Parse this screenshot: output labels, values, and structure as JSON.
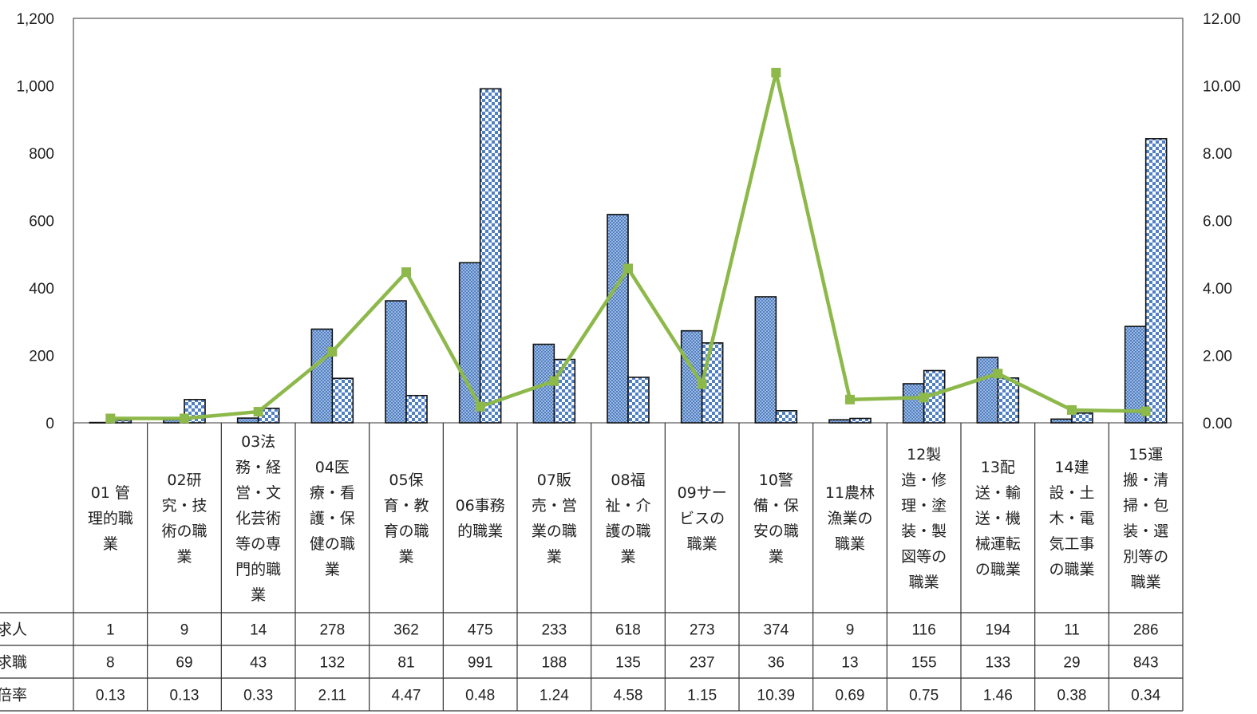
{
  "chart_data": {
    "type": "bar",
    "categories": [
      "01 管理的職業",
      "02研究・技術の職業",
      "03法務・経営・文化芸術等の専門的職業",
      "04医療・看護・保健の職業",
      "05保育・教育の職業",
      "06事務的職業",
      "07販売・営業の職業",
      "08福祉・介護の職業",
      "09サービスの職業",
      "10警備・保安の職業",
      "11農林漁業の職業",
      "12製造・修理・塗装・製図等の職業",
      "13配送・輸送・機械運転の職業",
      "14建設・土木・電気工事の職業",
      "15運搬・清掃・包装・選別等の職業"
    ],
    "category_lines": [
      [
        "01 管",
        "理的職",
        "業"
      ],
      [
        "02研",
        "究・技",
        "術の職",
        "業"
      ],
      [
        "03法",
        "務・経",
        "営・文",
        "化芸術",
        "等の専",
        "門的職",
        "業"
      ],
      [
        "04医",
        "療・看",
        "護・保",
        "健の職",
        "業"
      ],
      [
        "05保",
        "育・教",
        "育の職",
        "業"
      ],
      [
        "06事務",
        "的職業"
      ],
      [
        "07販",
        "売・営",
        "業の職",
        "業"
      ],
      [
        "08福",
        "祉・介",
        "護の職",
        "業"
      ],
      [
        "09サー",
        "ビスの",
        "職業"
      ],
      [
        "10警",
        "備・保",
        "安の職",
        "業"
      ],
      [
        "11農林",
        "漁業の",
        "職業"
      ],
      [
        "12製",
        "造・修",
        "理・塗",
        "装・製",
        "図等の",
        "職業"
      ],
      [
        "13配",
        "送・輸",
        "送・機",
        "械運転",
        "の職業"
      ],
      [
        "14建",
        "設・土",
        "木・電",
        "気工事",
        "の職業"
      ],
      [
        "15運",
        "搬・清",
        "掃・包",
        "装・選",
        "別等の",
        "職業"
      ]
    ],
    "series": [
      {
        "name": "求人",
        "kind": "bar",
        "pattern": "dots",
        "values": [
          1,
          9,
          14,
          278,
          362,
          475,
          233,
          618,
          273,
          374,
          9,
          116,
          194,
          11,
          286
        ]
      },
      {
        "name": "求職",
        "kind": "bar",
        "pattern": "checker",
        "values": [
          8,
          69,
          43,
          132,
          81,
          991,
          188,
          135,
          237,
          36,
          13,
          155,
          133,
          29,
          843
        ]
      },
      {
        "name": "求人倍率",
        "kind": "line",
        "axis": "right",
        "values": [
          0.13,
          0.13,
          0.33,
          2.11,
          4.47,
          0.48,
          1.24,
          4.58,
          1.15,
          10.39,
          0.69,
          0.75,
          1.46,
          0.38,
          0.34
        ]
      }
    ],
    "table_rows": [
      {
        "label": "求人",
        "cells": [
          "1",
          "9",
          "14",
          "278",
          "362",
          "475",
          "233",
          "618",
          "273",
          "374",
          "9",
          "116",
          "194",
          "11",
          "286"
        ]
      },
      {
        "label": "求職",
        "cells": [
          "8",
          "69",
          "43",
          "132",
          "81",
          "991",
          "188",
          "135",
          "237",
          "36",
          "13",
          "155",
          "133",
          "29",
          "843"
        ]
      },
      {
        "label": "求人倍率",
        "cells": [
          "0.13",
          "0.13",
          "0.33",
          "2.11",
          "4.47",
          "0.48",
          "1.24",
          "4.58",
          "1.15",
          "10.39",
          "0.69",
          "0.75",
          "1.46",
          "0.38",
          "0.34"
        ]
      }
    ],
    "ylim": [
      0,
      1200
    ],
    "y2lim": [
      0,
      12
    ],
    "yticks": [
      "0",
      "200",
      "400",
      "600",
      "800",
      "1,000",
      "1,200"
    ],
    "y2ticks": [
      "0.00",
      "2.00",
      "4.00",
      "6.00",
      "8.00",
      "10.00",
      "12.00"
    ],
    "grid": false,
    "legend": "data-table",
    "colors": {
      "bar": "#4f7fc4",
      "bar_stroke": "#111111",
      "line": "#8db84a"
    }
  }
}
